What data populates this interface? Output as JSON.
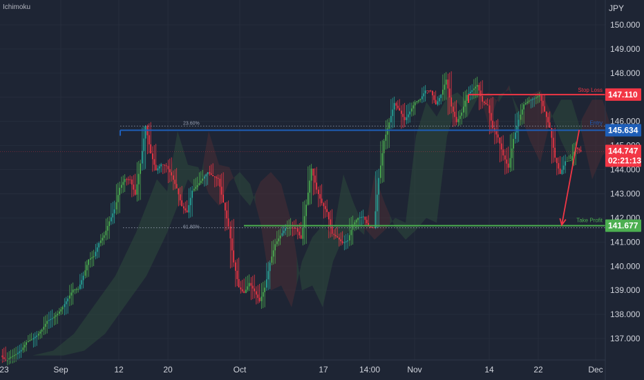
{
  "indicator_label": "Ichimoku",
  "chart_data": {
    "type": "candlestick",
    "unit": "JPY",
    "ylim": [
      136.2,
      150.6
    ],
    "y_ticks": [
      137,
      138,
      139,
      140,
      141,
      142,
      143,
      144,
      145,
      146,
      147,
      148,
      149,
      150
    ],
    "y_tick_labels": [
      "137.000",
      "138.000",
      "139.000",
      "140.000",
      "141.000",
      "142.000",
      "143.000",
      "144.000",
      "145.000",
      "146.000",
      "147.000",
      "148.000",
      "149.000",
      "150.000"
    ],
    "x_ticks": [
      "23",
      "Sep",
      "12",
      "20",
      "Oct",
      "17",
      "14:00",
      "Nov",
      "14",
      "22",
      "Dec"
    ],
    "price_path": [
      [
        0,
        136.3
      ],
      [
        4,
        136.5
      ],
      [
        8,
        137.2
      ],
      [
        12,
        138.4
      ],
      [
        16,
        139.6
      ],
      [
        20,
        141.4
      ],
      [
        24,
        143.6
      ],
      [
        26,
        143.1
      ],
      [
        28,
        145.6
      ],
      [
        30,
        144.2
      ],
      [
        32,
        144.1
      ],
      [
        34,
        143.0
      ],
      [
        36,
        142.5
      ],
      [
        38,
        143.5
      ],
      [
        40,
        143.9
      ],
      [
        42,
        143.4
      ],
      [
        44,
        141.8
      ],
      [
        46,
        139.0
      ],
      [
        48,
        139.2
      ],
      [
        50,
        138.3
      ],
      [
        52,
        140.2
      ],
      [
        54,
        141.2
      ],
      [
        56,
        141.7
      ],
      [
        58,
        141.3
      ],
      [
        60,
        143.8
      ],
      [
        62,
        142.6
      ],
      [
        64,
        141.6
      ],
      [
        66,
        141.1
      ],
      [
        68,
        141.5
      ],
      [
        70,
        142.0
      ],
      [
        72,
        141.8
      ],
      [
        74,
        145.4
      ],
      [
        76,
        146.8
      ],
      [
        78,
        146.2
      ],
      [
        80,
        147.0
      ],
      [
        82,
        147.2
      ],
      [
        84,
        146.8
      ],
      [
        86,
        147.5
      ],
      [
        88,
        145.8
      ],
      [
        90,
        147.1
      ],
      [
        92,
        147.3
      ],
      [
        94,
        146.4
      ],
      [
        96,
        145.2
      ],
      [
        98,
        144.3
      ],
      [
        100,
        146.1
      ],
      [
        102,
        146.9
      ],
      [
        104,
        146.9
      ],
      [
        106,
        145.5
      ],
      [
        108,
        143.6
      ],
      [
        110,
        144.6
      ],
      [
        111,
        144.747
      ]
    ],
    "levels": [
      {
        "name": "Stop Loss",
        "value": 147.11,
        "label": "147.110",
        "color": "#f23645"
      },
      {
        "name": "Entry",
        "value": 145.634,
        "label": "145.634",
        "color": "#1e5eb8",
        "fib": "23.60%"
      },
      {
        "name": "Take Profit",
        "value": 141.677,
        "label": "141.677",
        "color": "#4caf50",
        "fib": "61.80%"
      }
    ],
    "current_price": {
      "value": 144.747,
      "label": "144.747",
      "countdown": "02:21:13",
      "color": "#f23645"
    },
    "projection": {
      "from": [
        111.5,
        145.65
      ],
      "to": [
        119,
        141.65
      ]
    },
    "colors": {
      "up": "#26a69a",
      "up_alt": "#4caf50",
      "down": "#f23645",
      "grid": "#262d3c",
      "text": "#d1d4dc",
      "cloud_up": "#2e4a3c",
      "cloud_down": "#4a2e35"
    }
  }
}
